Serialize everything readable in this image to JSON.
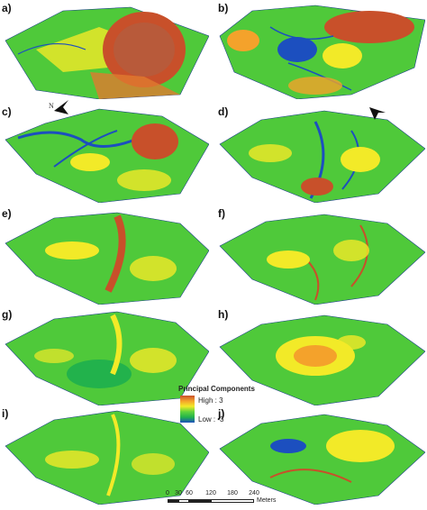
{
  "panels": [
    {
      "label": "a)",
      "palette": "orange"
    },
    {
      "label": "b)",
      "palette": "mixed"
    },
    {
      "label": "c)",
      "palette": "mixed-blue"
    },
    {
      "label": "d)",
      "palette": "mixed-blue"
    },
    {
      "label": "e)",
      "palette": "green"
    },
    {
      "label": "f)",
      "palette": "green"
    },
    {
      "label": "g)",
      "palette": "green"
    },
    {
      "label": "h)",
      "palette": "green-orange"
    },
    {
      "label": "i)",
      "palette": "green"
    },
    {
      "label": "j)",
      "palette": "green-yellow"
    }
  ],
  "north_arrow": {
    "label": "N"
  },
  "legend": {
    "title": "Principal Components",
    "high": "High : 3",
    "low": "Low : -3",
    "high_value": 3,
    "low_value": -3,
    "colors": [
      "#c8502a",
      "#f4a22b",
      "#f2ea28",
      "#5fd33c",
      "#22b24c",
      "#1c4fbf"
    ]
  },
  "scale_bar": {
    "ticks": [
      "0",
      "30",
      "60",
      "120",
      "180",
      "240"
    ],
    "tick_values": [
      0,
      30,
      60,
      120,
      180,
      240
    ],
    "unit": "Meters"
  }
}
